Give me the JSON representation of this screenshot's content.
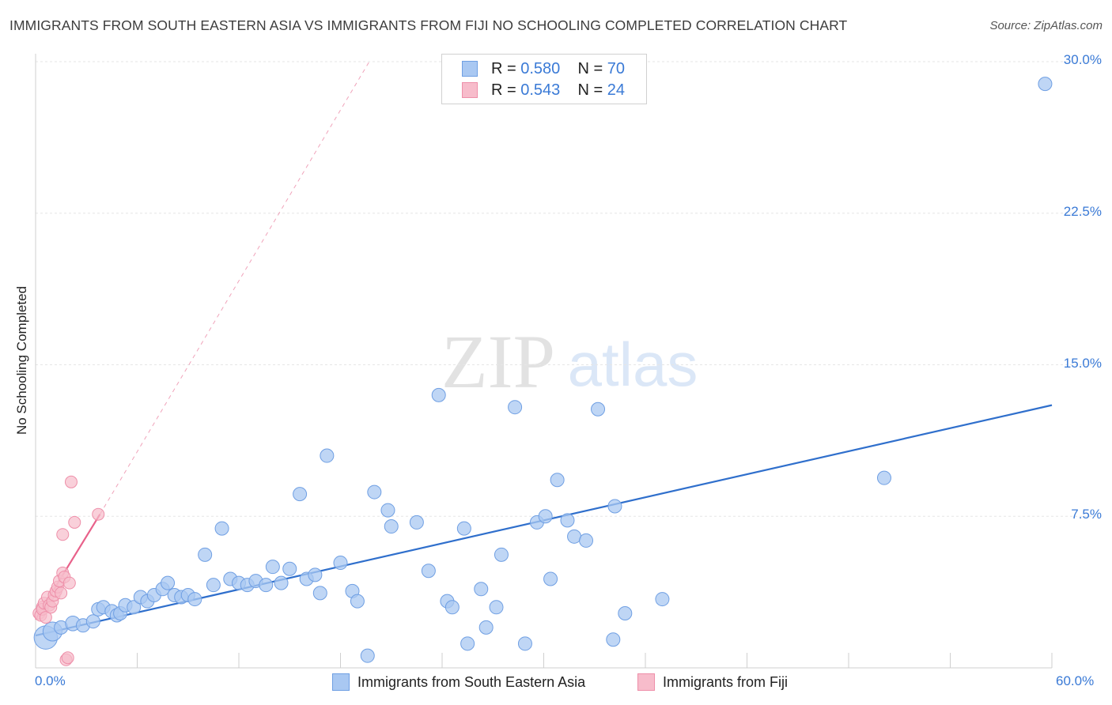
{
  "title": "IMMIGRANTS FROM SOUTH EASTERN ASIA VS IMMIGRANTS FROM FIJI NO SCHOOLING COMPLETED CORRELATION CHART",
  "source": "Source: ZipAtlas.com",
  "watermark": {
    "zip": "ZIP",
    "atlas": "atlas"
  },
  "legend_top": [
    {
      "r_label": "R =",
      "r_value": "0.580",
      "n_label": "N =",
      "n_value": "70"
    },
    {
      "r_label": "R =",
      "r_value": "0.543",
      "n_label": "N =",
      "n_value": "24"
    }
  ],
  "legend_bottom": [
    "Immigrants from South Eastern Asia",
    "Immigrants from Fiji"
  ],
  "colors": {
    "series1_fill": "#a9c8f2",
    "series1_stroke": "#6f9fe3",
    "series1_line": "#2f6fcc",
    "series2_fill": "#f7bccb",
    "series2_stroke": "#ee8fa9",
    "series2_line": "#e8618a",
    "axis_label": "#3a7ad6",
    "grid": "#e6e6e6"
  },
  "chart_data": {
    "type": "scatter",
    "title": "IMMIGRANTS FROM SOUTH EASTERN ASIA VS IMMIGRANTS FROM FIJI NO SCHOOLING COMPLETED CORRELATION CHART",
    "xlabel": "",
    "ylabel": "No Schooling Completed",
    "xlim": [
      0,
      60
    ],
    "ylim": [
      0,
      30
    ],
    "x_tick_labels": [
      "0.0%",
      "60.0%"
    ],
    "y_ticks": [
      7.5,
      15.0,
      22.5,
      30.0
    ],
    "y_tick_labels": [
      "7.5%",
      "15.0%",
      "22.5%",
      "30.0%"
    ],
    "grid": true,
    "legend_position": "bottom",
    "series": [
      {
        "name": "Immigrants from South Eastern Asia",
        "R": 0.58,
        "N": 70,
        "trend": {
          "x": [
            0,
            60
          ],
          "y": [
            1.6,
            13.0
          ],
          "style": "solid"
        },
        "points": [
          {
            "x": 0.6,
            "y": 1.5,
            "s": 3
          },
          {
            "x": 1.0,
            "y": 1.8,
            "s": 2
          },
          {
            "x": 1.5,
            "y": 2.0,
            "s": 1
          },
          {
            "x": 2.2,
            "y": 2.2,
            "s": 1.2
          },
          {
            "x": 2.8,
            "y": 2.1,
            "s": 1
          },
          {
            "x": 3.4,
            "y": 2.3,
            "s": 1
          },
          {
            "x": 3.7,
            "y": 2.9,
            "s": 1
          },
          {
            "x": 4.0,
            "y": 3.0,
            "s": 1
          },
          {
            "x": 4.5,
            "y": 2.8,
            "s": 1
          },
          {
            "x": 4.8,
            "y": 2.6,
            "s": 1
          },
          {
            "x": 5.0,
            "y": 2.7,
            "s": 1
          },
          {
            "x": 5.3,
            "y": 3.1,
            "s": 1
          },
          {
            "x": 5.8,
            "y": 3.0,
            "s": 1
          },
          {
            "x": 6.2,
            "y": 3.5,
            "s": 1
          },
          {
            "x": 6.6,
            "y": 3.3,
            "s": 1
          },
          {
            "x": 7.0,
            "y": 3.6,
            "s": 1
          },
          {
            "x": 7.5,
            "y": 3.9,
            "s": 1
          },
          {
            "x": 7.8,
            "y": 4.2,
            "s": 1
          },
          {
            "x": 8.2,
            "y": 3.6,
            "s": 1
          },
          {
            "x": 8.6,
            "y": 3.5,
            "s": 1
          },
          {
            "x": 9.0,
            "y": 3.6,
            "s": 1
          },
          {
            "x": 9.4,
            "y": 3.4,
            "s": 1
          },
          {
            "x": 10.0,
            "y": 5.6,
            "s": 1
          },
          {
            "x": 10.5,
            "y": 4.1,
            "s": 1
          },
          {
            "x": 11.0,
            "y": 6.9,
            "s": 1
          },
          {
            "x": 11.5,
            "y": 4.4,
            "s": 1
          },
          {
            "x": 12.0,
            "y": 4.2,
            "s": 1
          },
          {
            "x": 12.5,
            "y": 4.1,
            "s": 1
          },
          {
            "x": 13.0,
            "y": 4.3,
            "s": 1
          },
          {
            "x": 13.6,
            "y": 4.1,
            "s": 1
          },
          {
            "x": 14.0,
            "y": 5.0,
            "s": 1
          },
          {
            "x": 14.5,
            "y": 4.2,
            "s": 1
          },
          {
            "x": 15.0,
            "y": 4.9,
            "s": 1
          },
          {
            "x": 15.6,
            "y": 8.6,
            "s": 1
          },
          {
            "x": 16.0,
            "y": 4.4,
            "s": 1
          },
          {
            "x": 16.5,
            "y": 4.6,
            "s": 1
          },
          {
            "x": 16.8,
            "y": 3.7,
            "s": 1
          },
          {
            "x": 17.2,
            "y": 10.5,
            "s": 1
          },
          {
            "x": 18.0,
            "y": 5.2,
            "s": 1
          },
          {
            "x": 18.7,
            "y": 3.8,
            "s": 1
          },
          {
            "x": 19.0,
            "y": 3.3,
            "s": 1
          },
          {
            "x": 19.6,
            "y": 0.6,
            "s": 1
          },
          {
            "x": 20.0,
            "y": 8.7,
            "s": 1
          },
          {
            "x": 20.8,
            "y": 7.8,
            "s": 1
          },
          {
            "x": 21.0,
            "y": 7.0,
            "s": 1
          },
          {
            "x": 22.5,
            "y": 7.2,
            "s": 1
          },
          {
            "x": 23.2,
            "y": 4.8,
            "s": 1
          },
          {
            "x": 23.8,
            "y": 13.5,
            "s": 1
          },
          {
            "x": 24.3,
            "y": 3.3,
            "s": 1
          },
          {
            "x": 24.6,
            "y": 3.0,
            "s": 1
          },
          {
            "x": 25.3,
            "y": 6.9,
            "s": 1
          },
          {
            "x": 25.5,
            "y": 1.2,
            "s": 1
          },
          {
            "x": 26.3,
            "y": 3.9,
            "s": 1
          },
          {
            "x": 26.6,
            "y": 2.0,
            "s": 1
          },
          {
            "x": 27.2,
            "y": 3.0,
            "s": 1
          },
          {
            "x": 27.5,
            "y": 5.6,
            "s": 1
          },
          {
            "x": 28.3,
            "y": 12.9,
            "s": 1
          },
          {
            "x": 28.9,
            "y": 1.2,
            "s": 1
          },
          {
            "x": 29.6,
            "y": 7.2,
            "s": 1
          },
          {
            "x": 30.1,
            "y": 7.5,
            "s": 1
          },
          {
            "x": 30.4,
            "y": 4.4,
            "s": 1
          },
          {
            "x": 30.8,
            "y": 9.3,
            "s": 1
          },
          {
            "x": 31.4,
            "y": 7.3,
            "s": 1
          },
          {
            "x": 31.8,
            "y": 6.5,
            "s": 1
          },
          {
            "x": 32.5,
            "y": 6.3,
            "s": 1
          },
          {
            "x": 33.2,
            "y": 12.8,
            "s": 1
          },
          {
            "x": 34.1,
            "y": 1.4,
            "s": 1
          },
          {
            "x": 34.2,
            "y": 8.0,
            "s": 1
          },
          {
            "x": 34.8,
            "y": 2.7,
            "s": 1
          },
          {
            "x": 37.0,
            "y": 3.4,
            "s": 1
          },
          {
            "x": 50.1,
            "y": 9.4,
            "s": 1
          },
          {
            "x": 59.6,
            "y": 28.9,
            "s": 1
          }
        ]
      },
      {
        "name": "Immigrants from Fiji",
        "R": 0.543,
        "N": 24,
        "trend": {
          "x": [
            0,
            3.8
          ],
          "y": [
            2.4,
            7.6
          ],
          "style": "solid",
          "extended_to": {
            "x": 19.7,
            "y": 30.0,
            "style": "dashed"
          }
        },
        "points": [
          {
            "x": 0.2,
            "y": 2.7
          },
          {
            "x": 0.3,
            "y": 2.6
          },
          {
            "x": 0.4,
            "y": 3.0
          },
          {
            "x": 0.4,
            "y": 2.9
          },
          {
            "x": 0.5,
            "y": 3.2
          },
          {
            "x": 0.6,
            "y": 2.5
          },
          {
            "x": 0.7,
            "y": 3.5
          },
          {
            "x": 0.8,
            "y": 3.1
          },
          {
            "x": 0.9,
            "y": 3.0
          },
          {
            "x": 1.0,
            "y": 3.3
          },
          {
            "x": 1.1,
            "y": 3.6
          },
          {
            "x": 1.2,
            "y": 3.8
          },
          {
            "x": 1.3,
            "y": 4.0
          },
          {
            "x": 1.4,
            "y": 4.3
          },
          {
            "x": 1.5,
            "y": 3.7
          },
          {
            "x": 1.6,
            "y": 4.7
          },
          {
            "x": 1.7,
            "y": 4.5
          },
          {
            "x": 1.6,
            "y": 6.6
          },
          {
            "x": 1.8,
            "y": 0.4
          },
          {
            "x": 1.9,
            "y": 0.5
          },
          {
            "x": 2.0,
            "y": 4.2
          },
          {
            "x": 2.1,
            "y": 9.2
          },
          {
            "x": 2.3,
            "y": 7.2
          },
          {
            "x": 3.7,
            "y": 7.6
          }
        ]
      }
    ]
  }
}
